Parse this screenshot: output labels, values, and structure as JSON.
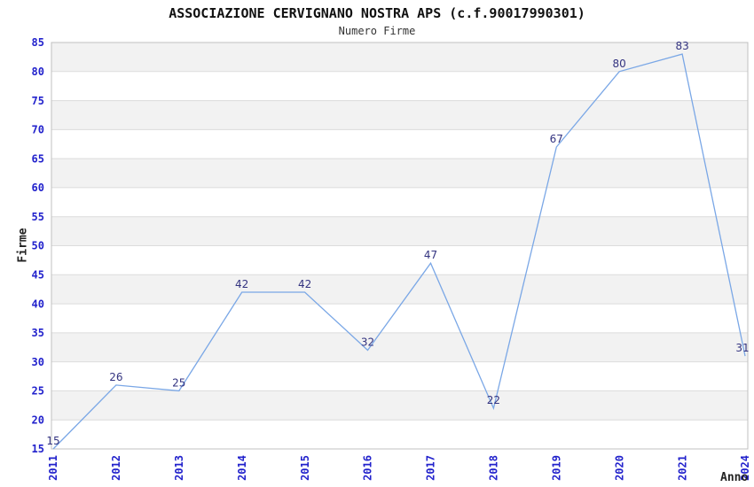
{
  "chart_data": {
    "type": "line",
    "title": "ASSOCIAZIONE CERVIGNANO NOSTRA APS (c.f.90017990301)",
    "subtitle": "Numero Firme",
    "xlabel": "Anno",
    "ylabel": "Firme",
    "categories": [
      "2011",
      "2012",
      "2013",
      "2014",
      "2015",
      "2016",
      "2017",
      "2018",
      "2019",
      "2020",
      "2021",
      "2024"
    ],
    "values": [
      15,
      26,
      25,
      42,
      42,
      32,
      47,
      22,
      67,
      80,
      83,
      31
    ],
    "ylim": [
      15,
      85
    ],
    "ytick_step": 5,
    "grid": "horizontal",
    "background_bands": "alternating",
    "legend": "none",
    "colors": {
      "line": "#7AA7E6",
      "tick_label": "#2222CC",
      "value_label": "#333380",
      "band": "#F2F2F2",
      "gridline": "#DCDCDC",
      "border": "#C0C0C0",
      "title": "#111111",
      "subtitle": "#333333",
      "axis_title": "#222222",
      "background": "#FFFFFF"
    }
  }
}
